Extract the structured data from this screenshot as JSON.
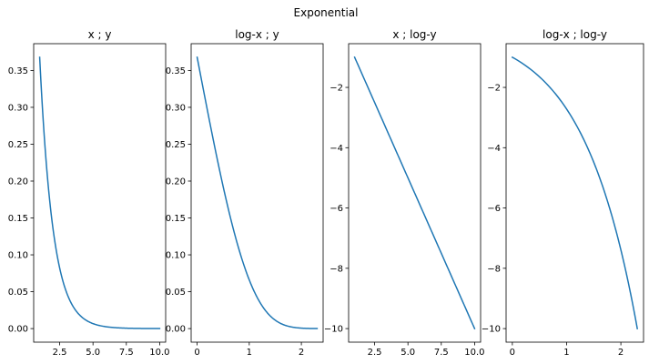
{
  "figure": {
    "title": "Exponential"
  },
  "colors": {
    "series": "#1f77b4"
  },
  "chart_data": [
    {
      "type": "line",
      "title": "x ; y",
      "function": "y = exp(-x)",
      "x_transform": "none",
      "y_transform": "none",
      "x_range": [
        1,
        10
      ],
      "xlim": [
        0.55,
        10.45
      ],
      "ylim": [
        -0.0184,
        0.3863
      ],
      "xticks": [
        2.5,
        5.0,
        7.5,
        10.0
      ],
      "xtick_labels": [
        "2.5",
        "5.0",
        "7.5",
        "10.0"
      ],
      "yticks": [
        0.0,
        0.05,
        0.1,
        0.15,
        0.2,
        0.25,
        0.3,
        0.35
      ],
      "ytick_labels": [
        "0.00",
        "0.05",
        "0.10",
        "0.15",
        "0.20",
        "0.25",
        "0.30",
        "0.35"
      ],
      "grid": false
    },
    {
      "type": "line",
      "title": "log-x ; y",
      "function": "y = exp(-x)",
      "x_transform": "ln",
      "y_transform": "none",
      "x_range": [
        1,
        10
      ],
      "xlim": [
        -0.1151,
        2.4177
      ],
      "ylim": [
        -0.0184,
        0.3863
      ],
      "xticks": [
        0,
        1,
        2
      ],
      "xtick_labels": [
        "0",
        "1",
        "2"
      ],
      "yticks": [
        0.0,
        0.05,
        0.1,
        0.15,
        0.2,
        0.25,
        0.3,
        0.35
      ],
      "ytick_labels": [
        "0.00",
        "0.05",
        "0.10",
        "0.15",
        "0.20",
        "0.25",
        "0.30",
        "0.35"
      ],
      "grid": false
    },
    {
      "type": "line",
      "title": "x ; log-y",
      "function": "y = exp(-x)",
      "x_transform": "none",
      "y_transform": "ln",
      "x_range": [
        1,
        10
      ],
      "xlim": [
        0.55,
        10.45
      ],
      "ylim": [
        -10.45,
        -0.55
      ],
      "xticks": [
        2.5,
        5.0,
        7.5,
        10.0
      ],
      "xtick_labels": [
        "2.5",
        "5.0",
        "7.5",
        "10.0"
      ],
      "yticks": [
        -2,
        -4,
        -6,
        -8,
        -10
      ],
      "ytick_labels": [
        "−2",
        "−4",
        "−6",
        "−8",
        "−10"
      ],
      "grid": false
    },
    {
      "type": "line",
      "title": "log-x ; log-y",
      "function": "y = exp(-x)",
      "x_transform": "ln",
      "y_transform": "ln",
      "x_range": [
        1,
        10
      ],
      "xlim": [
        -0.1151,
        2.4177
      ],
      "ylim": [
        -10.45,
        -0.55
      ],
      "xticks": [
        0,
        1,
        2
      ],
      "xtick_labels": [
        "0",
        "1",
        "2"
      ],
      "yticks": [
        -2,
        -4,
        -6,
        -8,
        -10
      ],
      "ytick_labels": [
        "−2",
        "−4",
        "−6",
        "−8",
        "−10"
      ],
      "grid": false
    }
  ]
}
